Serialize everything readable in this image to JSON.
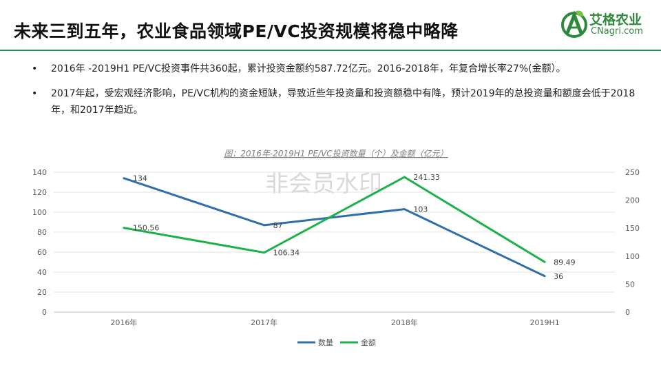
{
  "page": {
    "title": "未来三到五年，农业食品领域PE/VC投资规模将稳中略降",
    "logo": {
      "cn": "艾格农业",
      "en": "CNagri.com"
    }
  },
  "bullets": [
    "2016年 -2019H1 PE/VC投资事件共360起，累计投资金额约587.72亿元。2016-2018年，年复合增长率27%(金额）。",
    "2017年起，受宏观经济影响，PE/VC机构的资金短缺，导致近些年投资量和投资额稳中有降，预计2019年的总投资量和额度会低于2018年，和2017年趋近。"
  ],
  "watermark": "非会员水印",
  "colors": {
    "count": "#2e6faa",
    "amount": "#1db14a",
    "title_rule": "#2e8b57",
    "logo": "#2c8a3a"
  },
  "chart_data": {
    "type": "line",
    "title": "图：2016年-2019H1  PE/VC投资数量（个）及金额（亿元）",
    "categories": [
      "2016年",
      "2017年",
      "2018年",
      "2019H1"
    ],
    "series": [
      {
        "name": "数量",
        "axis": "left",
        "values": [
          134,
          87,
          103,
          36
        ],
        "labels": [
          "134",
          "87",
          "103",
          "36"
        ]
      },
      {
        "name": "金额",
        "axis": "right",
        "values": [
          150.56,
          106.34,
          241.33,
          89.49
        ],
        "labels": [
          "150.56",
          "106.34",
          "241.33",
          "89.49"
        ]
      }
    ],
    "y_left": {
      "min": 0,
      "max": 140,
      "ticks": [
        "0",
        "20",
        "40",
        "60",
        "80",
        "100",
        "120",
        "140"
      ]
    },
    "y_right": {
      "min": 0,
      "max": 250,
      "ticks": [
        "0",
        "50",
        "100",
        "150",
        "200",
        "250"
      ]
    },
    "grid": true,
    "legend_position": "bottom"
  }
}
